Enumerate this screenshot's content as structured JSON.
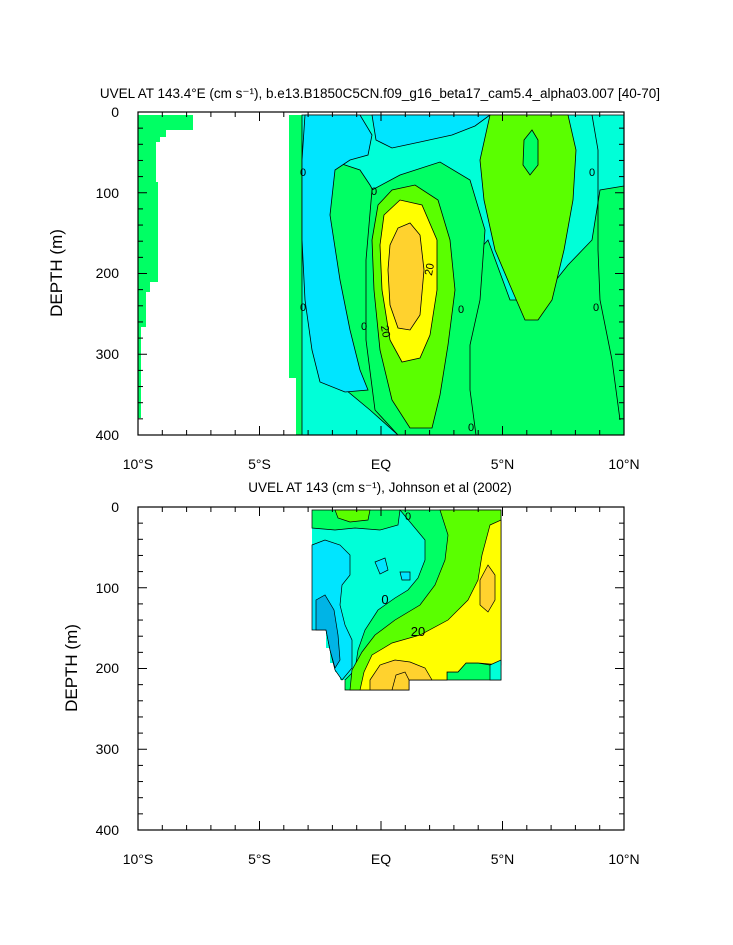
{
  "chart_data": [
    {
      "type": "contour",
      "title": "UVEL AT 143.4°E (cm s⁻¹), b.e13.B1850C5CN.f09_g16_beta17_cam5.4_alpha03.007 [40-70]",
      "ylabel": "DEPTH (m)",
      "xlabel": "",
      "xlim": [
        -10,
        10
      ],
      "ylim": [
        400,
        0
      ],
      "y_reversed": true,
      "x_tick_labels": [
        "10°S",
        "5°S",
        "EQ",
        "5°N",
        "10°N"
      ],
      "y_tick_labels": [
        "0",
        "100",
        "200",
        "300",
        "400"
      ],
      "contour_labels": [
        "0",
        "0",
        "0",
        "0",
        "0",
        "0",
        "20",
        "20",
        "0"
      ],
      "colors": {
        "neg_20_to_10": "#00e5ff",
        "neg_10_to_0": "#00ffd8",
        "zero_to_10": "#00ff64",
        "ten_to_20": "#5aff00",
        "twenty_to_30": "#ffff00",
        "thirty_to_40": "#ffd22e"
      }
    },
    {
      "type": "contour",
      "title": "UVEL AT 143 (cm s⁻¹), Johnson et al (2002)",
      "ylabel": "DEPTH (m)",
      "xlabel": "",
      "xlim": [
        -10,
        10
      ],
      "ylim": [
        400,
        0
      ],
      "y_reversed": true,
      "x_tick_labels": [
        "10°S",
        "5°S",
        "EQ",
        "5°N",
        "10°N"
      ],
      "y_tick_labels": [
        "0",
        "100",
        "200",
        "300",
        "400"
      ],
      "contour_labels": [
        "0",
        "0",
        "20"
      ],
      "colors": {
        "neg_30_to_20": "#00b4e6",
        "neg_20_to_10": "#00e5ff",
        "neg_10_to_0": "#00ffd8",
        "zero_to_10": "#00ff64",
        "ten_to_20": "#5aff00",
        "twenty_to_30": "#ffff00",
        "thirty_to_40": "#ffd22e"
      }
    }
  ]
}
